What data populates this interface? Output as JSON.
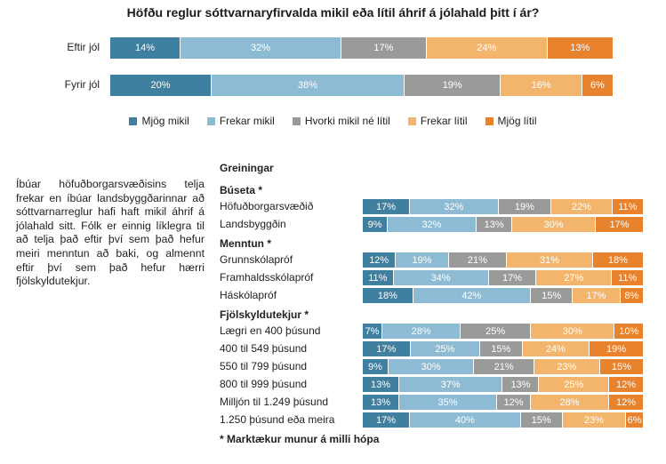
{
  "chart_data": {
    "type": "bar",
    "orientation": "horizontal",
    "stacked": true,
    "title": "Höfðu reglur sóttvarnaryfirvalda mikil eða lítil áhrif á jólahald þitt í ár?",
    "legend": {
      "placement": "bottom",
      "entries": [
        "Mjög mikil",
        "Frekar mikil",
        "Hvorki mikil né lítil",
        "Frekar lítil",
        "Mjög lítil"
      ]
    },
    "colors": [
      "#3f7fa0",
      "#8dbbd3",
      "#9a9a9a",
      "#f3b56b",
      "#e8822c"
    ],
    "main": [
      {
        "label": "Eftir jól",
        "values": [
          14,
          32,
          17,
          24,
          13
        ]
      },
      {
        "label": "Fyrir jól",
        "values": [
          20,
          38,
          19,
          16,
          6
        ]
      }
    ],
    "breakdown_title": "Greiningar",
    "groups": [
      {
        "title": "Búseta *",
        "rows": [
          {
            "label": "Höfuðborgarsvæðið",
            "values": [
              17,
              32,
              19,
              22,
              11
            ]
          },
          {
            "label": "Landsbyggðin",
            "values": [
              9,
              32,
              13,
              30,
              17
            ]
          }
        ]
      },
      {
        "title": "Menntun *",
        "rows": [
          {
            "label": "Grunnskólapróf",
            "values": [
              12,
              19,
              21,
              31,
              18
            ]
          },
          {
            "label": "Framhaldsskólapróf",
            "values": [
              11,
              34,
              17,
              27,
              11
            ]
          },
          {
            "label": "Háskólapróf",
            "values": [
              18,
              42,
              15,
              17,
              8
            ]
          }
        ]
      },
      {
        "title": "Fjölskyldutekjur *",
        "rows": [
          {
            "label": "Lægri en 400 þúsund",
            "values": [
              7,
              28,
              25,
              30,
              10
            ]
          },
          {
            "label": "400 til 549 þúsund",
            "values": [
              17,
              25,
              15,
              24,
              19
            ]
          },
          {
            "label": "550 til 799 þúsund",
            "values": [
              9,
              30,
              21,
              23,
              15
            ]
          },
          {
            "label": "800 til 999 þúsund",
            "values": [
              13,
              37,
              13,
              25,
              12
            ]
          },
          {
            "label": "Milljón til 1.249 þúsund",
            "values": [
              13,
              35,
              12,
              28,
              12
            ]
          },
          {
            "label": "1.250 þúsund eða meira",
            "values": [
              17,
              40,
              15,
              23,
              6
            ]
          }
        ]
      }
    ],
    "footnote": "* Marktækur munur á milli hópa"
  },
  "side_text": "Íbúar höfuðborgarsvæðisins telja frekar en íbúar landsbyggðarinnar að sóttvarnarreglur hafi haft mikil áhrif á jólahald sitt. Fólk er einnig líklegra til að telja það eftir því sem það hefur meiri menntun að baki, og almennt eftir því sem það hefur hærri fjölskyldutekjur."
}
